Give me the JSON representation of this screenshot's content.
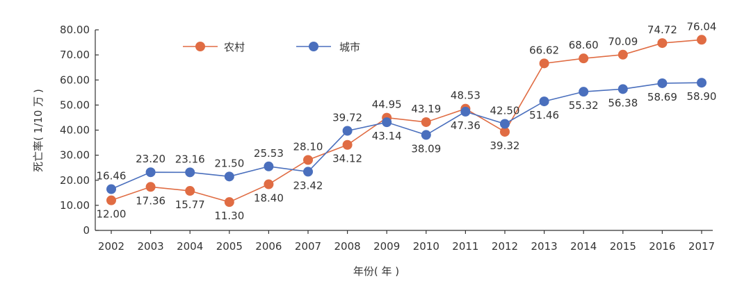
{
  "chart_data": {
    "type": "line",
    "x": [
      "2002",
      "2003",
      "2004",
      "2005",
      "2006",
      "2007",
      "2008",
      "2009",
      "2010",
      "2011",
      "2012",
      "2013",
      "2014",
      "2015",
      "2016",
      "2017"
    ],
    "series": [
      {
        "name": "农村",
        "color": "#e06c43",
        "values": [
          12.0,
          17.36,
          15.77,
          11.3,
          18.4,
          28.1,
          34.12,
          44.95,
          43.19,
          48.53,
          39.32,
          66.62,
          68.6,
          70.09,
          74.72,
          76.04
        ],
        "labels": [
          "12.00",
          "17.36",
          "15.77",
          "11.30",
          "18.40",
          "28.10",
          "34.12",
          "44.95",
          "43.19",
          "48.53",
          "39.32",
          "66.62",
          "68.60",
          "70.09",
          "74.72",
          "76.04"
        ]
      },
      {
        "name": "城市",
        "color": "#4a6fbd",
        "values": [
          16.46,
          23.2,
          23.16,
          21.5,
          25.53,
          23.42,
          39.72,
          43.14,
          38.09,
          47.36,
          42.5,
          51.46,
          55.32,
          56.38,
          58.69,
          58.9
        ],
        "labels": [
          "16.46",
          "23.20",
          "23.16",
          "21.50",
          "25.53",
          "23.42",
          "39.72",
          "43.14",
          "38.09",
          "47.36",
          "42.50",
          "51.46",
          "55.32",
          "56.38",
          "58.69",
          "58.90"
        ]
      }
    ],
    "xlabel": "年份( 年 )",
    "ylabel": "死亡率( 1/10 万 )",
    "ylim": [
      0,
      80
    ],
    "yticks": [
      "0",
      "10.00",
      "20.00",
      "30.00",
      "40.00",
      "50.00",
      "60.00",
      "70.00",
      "80.00"
    ],
    "grid": false,
    "legend": "top-left"
  }
}
